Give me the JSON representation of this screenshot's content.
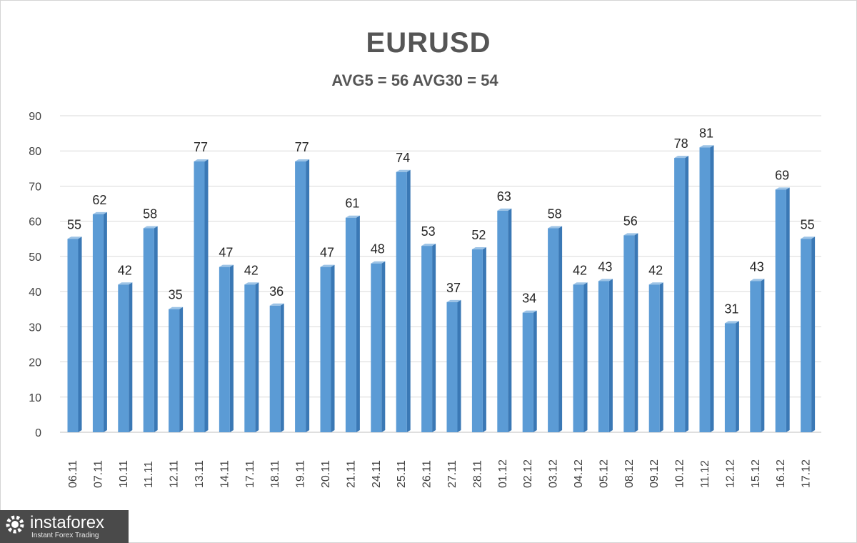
{
  "chart_data": {
    "type": "bar",
    "title": "EURUSD",
    "subtitle": "AVG5 = 56 AVG30 = 54",
    "categories": [
      "06.11",
      "07.11",
      "10.11",
      "11.11",
      "12.11",
      "13.11",
      "14.11",
      "17.11",
      "18.11",
      "19.11",
      "20.11",
      "21.11",
      "24.11",
      "25.11",
      "26.11",
      "27.11",
      "28.11",
      "01.12",
      "02.12",
      "03.12",
      "04.12",
      "05.12",
      "08.12",
      "09.12",
      "10.12",
      "11.12",
      "12.12",
      "15.12",
      "16.12",
      "17.12"
    ],
    "values": [
      55,
      62,
      42,
      58,
      35,
      77,
      47,
      42,
      36,
      77,
      47,
      61,
      48,
      74,
      53,
      37,
      52,
      63,
      34,
      58,
      42,
      43,
      56,
      42,
      78,
      81,
      31,
      43,
      69,
      55
    ],
    "ylim": [
      0,
      90
    ],
    "yticks": [
      0,
      10,
      20,
      30,
      40,
      50,
      60,
      70,
      80,
      90
    ],
    "grid": true,
    "legend": "none",
    "bar_color": "#5b9bd5",
    "data_labels": true
  },
  "branding": {
    "name": "instaforex",
    "tagline": "Instant Forex Trading"
  }
}
